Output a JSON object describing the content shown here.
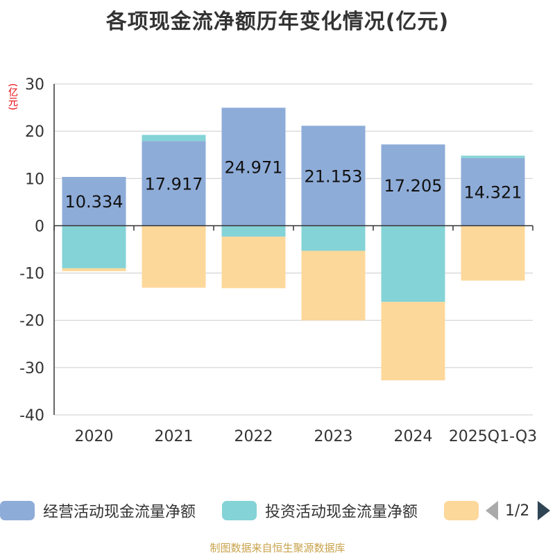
{
  "title": "各项现金流净额历年变化情况(亿元)",
  "unit_label": "(亿元)",
  "source": "制图数据来自恒生聚源数据库",
  "pager": {
    "text": "1/2"
  },
  "colors": {
    "operating": "#8eacd8",
    "investing": "#84d3d6",
    "financing": "#fdd89b",
    "grid": "#cccccc",
    "axis": "#333333",
    "unit": "#e6000a"
  },
  "chart_data": {
    "type": "bar",
    "stacked": true,
    "categories": [
      "2020",
      "2021",
      "2022",
      "2023",
      "2024",
      "2025Q1-Q3"
    ],
    "series": [
      {
        "name": "经营活动现金流量净额",
        "color_key": "operating",
        "values": [
          10.334,
          17.917,
          24.971,
          21.153,
          17.205,
          14.321
        ],
        "labels": [
          "10.334",
          "17.917",
          "24.971",
          "21.153",
          "17.205",
          "14.321"
        ]
      },
      {
        "name": "投资活动现金流量净额",
        "color_key": "investing",
        "values": [
          -9.0,
          1.3,
          -2.3,
          -5.3,
          -16.1,
          0.5
        ]
      },
      {
        "name": "",
        "color_key": "financing",
        "values": [
          -0.6,
          -13.1,
          -10.9,
          -14.7,
          -16.6,
          -11.6
        ]
      }
    ],
    "ylim": [
      -40,
      30
    ],
    "yticks": [
      30,
      20,
      10,
      0,
      -10,
      -20,
      -30,
      -40
    ],
    "ylabel": "(亿元)",
    "grid": true,
    "legend": "bottom"
  }
}
